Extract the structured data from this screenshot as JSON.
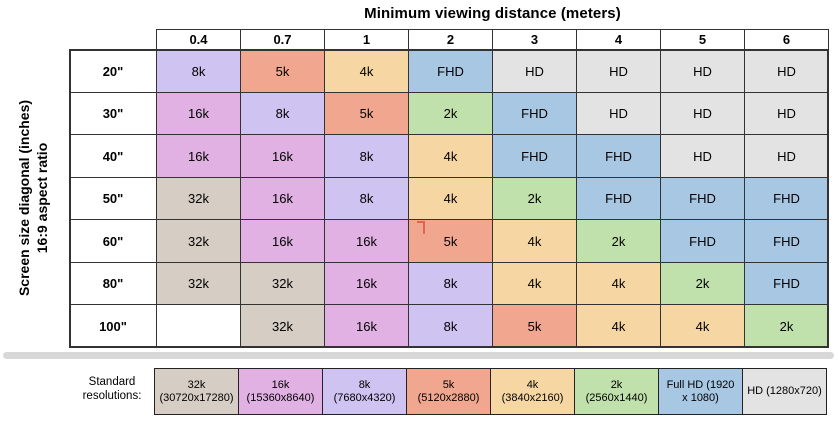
{
  "title": "Minimum viewing distance (meters)",
  "y_axis": {
    "line1": "Screen size diagonal (inches)",
    "line2": "16:9 aspect ratio"
  },
  "columns": [
    "0.4",
    "0.7",
    "1",
    "2",
    "3",
    "4",
    "5",
    "6"
  ],
  "rows": [
    {
      "label": "20\"",
      "cells": [
        "8k",
        "5k",
        "4k",
        "FHD",
        "HD",
        "HD",
        "HD",
        "HD"
      ]
    },
    {
      "label": "30\"",
      "cells": [
        "16k",
        "8k",
        "5k",
        "2k",
        "FHD",
        "HD",
        "HD",
        "HD"
      ]
    },
    {
      "label": "40\"",
      "cells": [
        "16k",
        "16k",
        "8k",
        "4k",
        "FHD",
        "FHD",
        "HD",
        "HD"
      ]
    },
    {
      "label": "50\"",
      "cells": [
        "32k",
        "16k",
        "8k",
        "4k",
        "2k",
        "FHD",
        "FHD",
        "FHD"
      ]
    },
    {
      "label": "60\"",
      "cells": [
        "32k",
        "16k",
        "16k",
        "5k",
        "4k",
        "2k",
        "FHD",
        "FHD"
      ]
    },
    {
      "label": "80\"",
      "cells": [
        "32k",
        "32k",
        "16k",
        "8k",
        "4k",
        "4k",
        "2k",
        "FHD"
      ]
    },
    {
      "label": "100\"",
      "cells": [
        "",
        "32k",
        "16k",
        "8k",
        "5k",
        "4k",
        "4k",
        "2k"
      ]
    }
  ],
  "colors": {
    "32k": "#d6cdc4",
    "16k": "#e1b1e3",
    "8k": "#cec3f1",
    "5k": "#f1a78f",
    "4k": "#f6d7a3",
    "2k": "#c1e1ac",
    "FHD": "#a8c7e3",
    "HD": "#e3e3e3",
    "": "#ffffff"
  },
  "legend": {
    "label_line1": "Standard",
    "label_line2": "resolutions:",
    "items": [
      {
        "key": "32k",
        "line1": "32k",
        "line2": "(30720x17280)"
      },
      {
        "key": "16k",
        "line1": "16k",
        "line2": "(15360x8640)"
      },
      {
        "key": "8k",
        "line1": "8k",
        "line2": "(7680x4320)"
      },
      {
        "key": "5k",
        "line1": "5k",
        "line2": "(5120x2880)"
      },
      {
        "key": "4k",
        "line1": "4k",
        "line2": "(3840x2160)"
      },
      {
        "key": "2k",
        "line1": "2k",
        "line2": "(2560x1440)"
      },
      {
        "key": "FHD",
        "line1": "Full HD (1920",
        "line2": "x 1080)"
      },
      {
        "key": "HD",
        "line1": "HD (1280x720)",
        "line2": ""
      }
    ]
  },
  "chart_data": {
    "type": "table",
    "title": "Minimum viewing distance (meters)",
    "xlabel": "Minimum viewing distance (meters)",
    "ylabel": "Screen size diagonal (inches), 16:9 aspect ratio",
    "columns": [
      0.4,
      0.7,
      1,
      2,
      3,
      4,
      5,
      6
    ],
    "row_labels": [
      "20\"",
      "30\"",
      "40\"",
      "50\"",
      "60\"",
      "80\"",
      "100\""
    ],
    "values": [
      [
        "8k",
        "5k",
        "4k",
        "FHD",
        "HD",
        "HD",
        "HD",
        "HD"
      ],
      [
        "16k",
        "8k",
        "5k",
        "2k",
        "FHD",
        "HD",
        "HD",
        "HD"
      ],
      [
        "16k",
        "16k",
        "8k",
        "4k",
        "FHD",
        "FHD",
        "HD",
        "HD"
      ],
      [
        "32k",
        "16k",
        "8k",
        "4k",
        "2k",
        "FHD",
        "FHD",
        "FHD"
      ],
      [
        "32k",
        "16k",
        "16k",
        "5k",
        "4k",
        "2k",
        "FHD",
        "FHD"
      ],
      [
        "32k",
        "32k",
        "16k",
        "8k",
        "4k",
        "4k",
        "2k",
        "FHD"
      ],
      [
        null,
        "32k",
        "16k",
        "8k",
        "5k",
        "4k",
        "4k",
        "2k"
      ]
    ],
    "legend_entries": [
      "32k (30720x17280)",
      "16k (15360x8640)",
      "8k (7680x4320)",
      "5k (5120x2880)",
      "4k (3840x2160)",
      "2k (2560x1440)",
      "Full HD (1920 x 1080)",
      "HD (1280x720)"
    ],
    "grid": true,
    "legend_position": "bottom"
  }
}
